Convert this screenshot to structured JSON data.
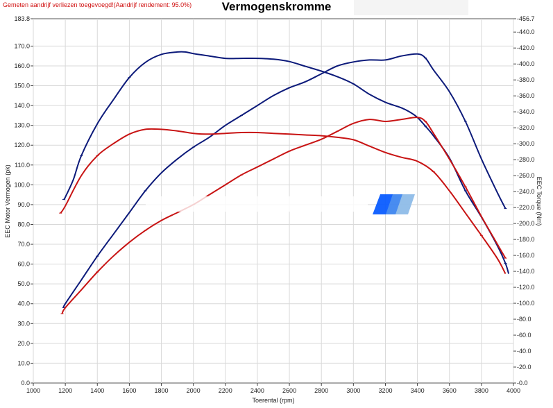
{
  "header": {
    "note": "Gemeten aandrijf verliezen toegevoegd!(Aandrijf rendement: 95.0%)",
    "title": "Vermogenskromme"
  },
  "chart_data": {
    "type": "line",
    "title": "Vermogenskromme",
    "xlabel": "Toerental (rpm)",
    "ylabel_left": "EEC Motor Vermogen (pk)",
    "ylabel_right": "EEC Torque (Nm)",
    "xlim": [
      1000,
      4000
    ],
    "ylim_left": [
      0,
      183.8
    ],
    "ylim_right": [
      0,
      456.7
    ],
    "grid": true,
    "x_ticks": [
      "1000",
      "1200",
      "1400",
      "1600",
      "1800",
      "2000",
      "2200",
      "2400",
      "2600",
      "2800",
      "3000",
      "3200",
      "3400",
      "3600",
      "3800",
      "4000"
    ],
    "y_left_ticks": [
      "0.0",
      "10.0",
      "20.0",
      "30.0",
      "40.0",
      "50.0",
      "60.0",
      "70.0",
      "80.0",
      "90.0",
      "100.0",
      "110.0",
      "120.0",
      "130.0",
      "140.0",
      "150.0",
      "160.0",
      "170.0",
      "183.8"
    ],
    "y_right_ticks": [
      "0.0",
      "20.0",
      "40.0",
      "60.0",
      "80.0",
      "100.0",
      "120.0",
      "140.0",
      "160.0",
      "180.0",
      "200.0",
      "220.0",
      "240.0",
      "260.0",
      "280.0",
      "300.0",
      "320.0",
      "340.0",
      "360.0",
      "380.0",
      "400.0",
      "420.0",
      "440.0",
      "456.7"
    ],
    "series": [
      {
        "color": "#0c1a7a",
        "axis": "left",
        "x": [
          1190,
          1200,
          1300,
          1400,
          1500,
          1600,
          1700,
          1800,
          1900,
          2000,
          2100,
          2200,
          2300,
          2400,
          2500,
          2600,
          2700,
          2800,
          2900,
          3000,
          3100,
          3200,
          3300,
          3400,
          3450,
          3500,
          3600,
          3700,
          3800,
          3900,
          3950
        ],
        "y": [
          38,
          40,
          52,
          64,
          75,
          86,
          97,
          106,
          113,
          119,
          124,
          130,
          135,
          140,
          145,
          149,
          152,
          156,
          160,
          162,
          163,
          163,
          165,
          166,
          164,
          158,
          147,
          132,
          113,
          96,
          88
        ]
      },
      {
        "color": "#0c1a7a",
        "axis": "right",
        "x": [
          1190,
          1200,
          1250,
          1300,
          1400,
          1500,
          1600,
          1700,
          1800,
          1900,
          1950,
          2000,
          2100,
          2200,
          2300,
          2400,
          2500,
          2600,
          2700,
          2800,
          2900,
          3000,
          3100,
          3200,
          3300,
          3350,
          3400,
          3450,
          3500,
          3600,
          3700,
          3800,
          3900,
          3950,
          3970
        ],
        "y": [
          230,
          233,
          255,
          285,
          325,
          355,
          383,
          402,
          412,
          415,
          415,
          413,
          410,
          407,
          407,
          407,
          406,
          403,
          397,
          391,
          384,
          375,
          362,
          352,
          345,
          340,
          333,
          322,
          310,
          282,
          241,
          208,
          172,
          150,
          137
        ]
      },
      {
        "color": "#c81414",
        "axis": "left",
        "x": [
          1180,
          1200,
          1300,
          1400,
          1500,
          1600,
          1700,
          1800,
          1900,
          2000,
          2100,
          2200,
          2300,
          2400,
          2500,
          2600,
          2700,
          2800,
          2900,
          3000,
          3100,
          3200,
          3300,
          3400,
          3450,
          3500,
          3600,
          3700,
          3800,
          3900,
          3950
        ],
        "y": [
          35,
          38,
          47,
          56,
          64,
          71,
          77,
          82,
          86,
          90,
          95,
          100,
          105,
          109,
          113,
          117,
          120,
          123,
          127,
          131,
          133,
          132,
          133,
          134,
          132,
          126,
          113,
          99,
          84,
          70,
          63
        ]
      },
      {
        "color": "#c81414",
        "axis": "right",
        "x": [
          1170,
          1200,
          1300,
          1400,
          1500,
          1600,
          1700,
          1800,
          1900,
          2000,
          2100,
          2200,
          2300,
          2400,
          2500,
          2600,
          2700,
          2800,
          2900,
          3000,
          3100,
          3200,
          3300,
          3400,
          3500,
          3600,
          3700,
          3800,
          3900,
          3950
        ],
        "y": [
          213,
          222,
          260,
          285,
          300,
          312,
          318,
          318,
          316,
          313,
          312,
          313,
          314,
          314,
          313,
          312,
          311,
          310,
          308,
          305,
          297,
          289,
          283,
          278,
          265,
          241,
          213,
          185,
          156,
          137
        ]
      }
    ]
  }
}
